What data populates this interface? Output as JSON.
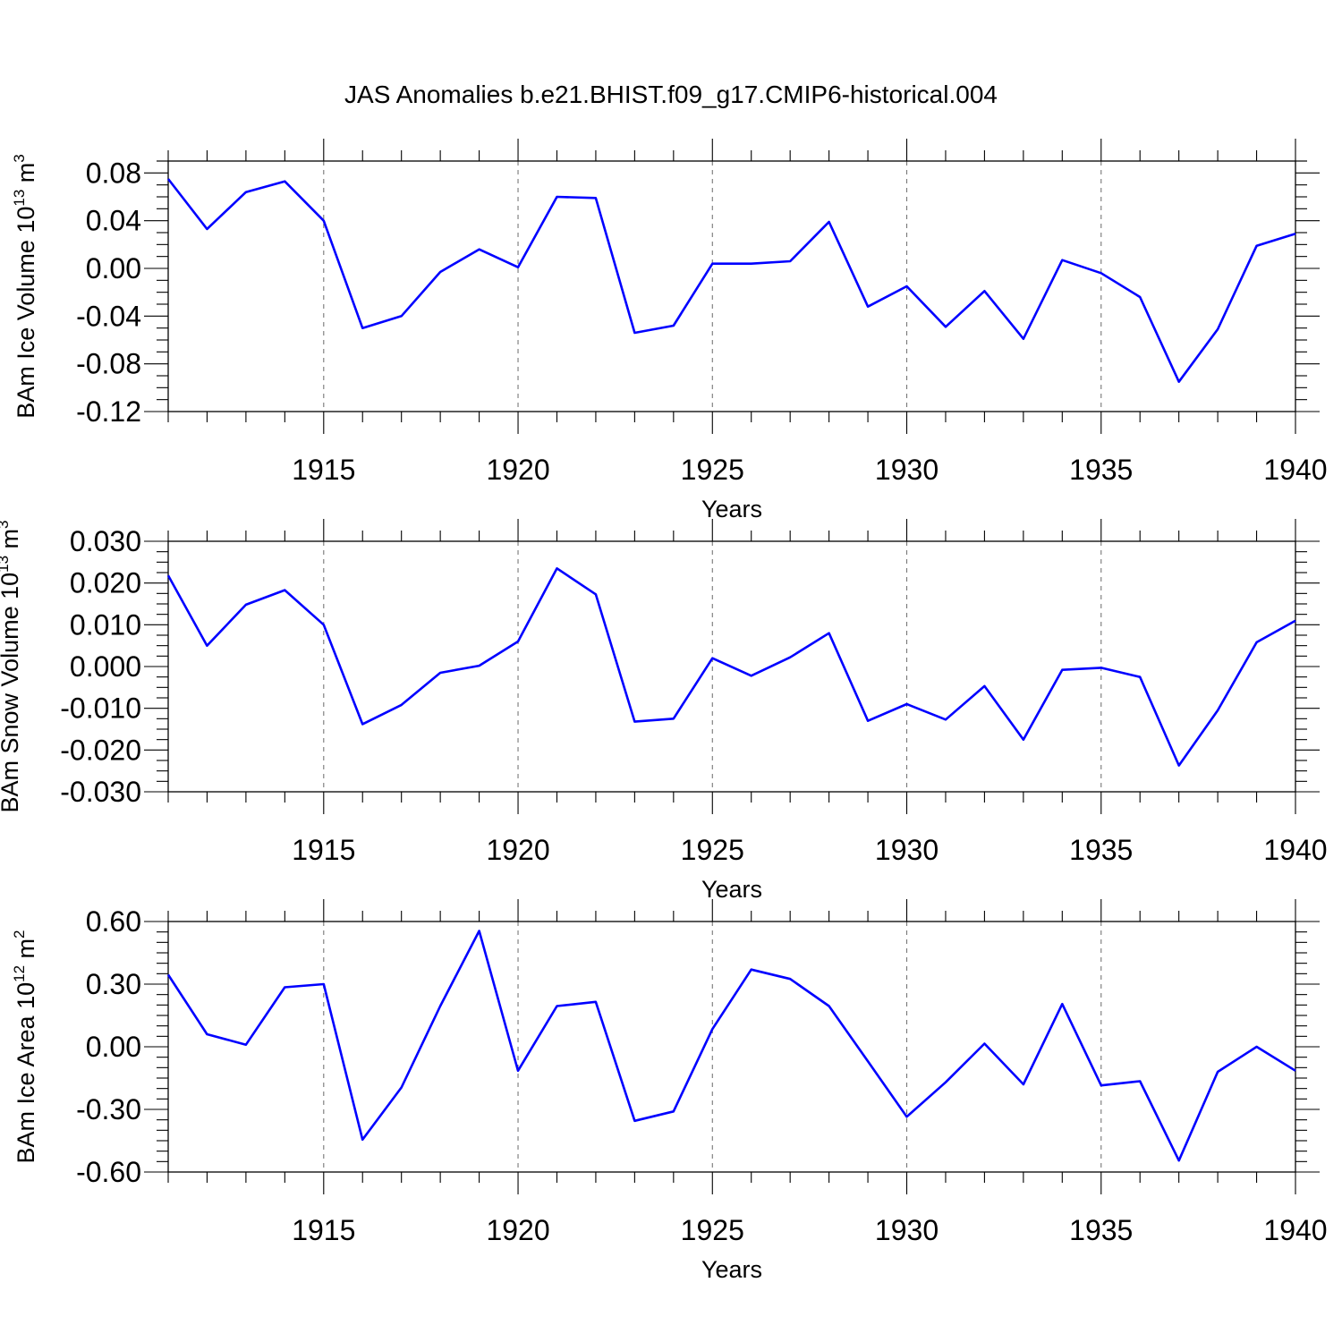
{
  "title": "JAS Anomalies b.e21.BHIST.f09_g17.CMIP6-historical.004",
  "colors": {
    "series": "#0000ff",
    "grid": "#777777",
    "axis": "#000000"
  },
  "chart_data": [
    {
      "type": "line",
      "ylabel": {
        "text": "BAm Ice Volume 10",
        "exp": "13",
        "unit": " m",
        "unit_exp": "3"
      },
      "xlabel": "Years",
      "xlim": [
        1911,
        1940
      ],
      "ylim": [
        -0.12,
        0.09
      ],
      "x_ticks": [
        1915,
        1920,
        1925,
        1930,
        1935,
        1940
      ],
      "x_tick_labels": [
        "1915",
        "1920",
        "1925",
        "1930",
        "1935",
        "1940"
      ],
      "y_ticks": [
        0.08,
        0.04,
        0.0,
        -0.04,
        -0.08,
        -0.12
      ],
      "y_tick_labels": [
        "0.08",
        "0.04",
        "0.00",
        "-0.04",
        "-0.08",
        "-0.12"
      ],
      "grid": "vertical dashed at major x ticks",
      "x": [
        1911,
        1912,
        1913,
        1914,
        1915,
        1916,
        1917,
        1918,
        1919,
        1920,
        1921,
        1922,
        1923,
        1924,
        1925,
        1926,
        1927,
        1928,
        1929,
        1930,
        1931,
        1932,
        1933,
        1934,
        1935,
        1936,
        1937,
        1938,
        1939,
        1940
      ],
      "values": [
        0.075,
        0.033,
        0.064,
        0.073,
        0.04,
        -0.05,
        -0.04,
        -0.003,
        0.016,
        0.001,
        0.06,
        0.059,
        -0.054,
        -0.048,
        0.004,
        0.004,
        0.006,
        0.039,
        -0.032,
        -0.015,
        -0.049,
        -0.019,
        -0.059,
        0.007,
        -0.004,
        -0.024,
        -0.095,
        -0.051,
        0.019,
        0.029
      ]
    },
    {
      "type": "line",
      "ylabel": {
        "text": "BAm Snow Volume 10",
        "exp": "13",
        "unit": " m",
        "unit_exp": "3"
      },
      "xlabel": "Years",
      "xlim": [
        1911,
        1940
      ],
      "ylim": [
        -0.03,
        0.03
      ],
      "x_ticks": [
        1915,
        1920,
        1925,
        1930,
        1935,
        1940
      ],
      "x_tick_labels": [
        "1915",
        "1920",
        "1925",
        "1930",
        "1935",
        "1940"
      ],
      "y_ticks": [
        0.03,
        0.02,
        0.01,
        0.0,
        -0.01,
        -0.02,
        -0.03
      ],
      "y_tick_labels": [
        "0.030",
        "0.020",
        "0.010",
        "0.000",
        "-0.010",
        "-0.020",
        "-0.030"
      ],
      "grid": "vertical dashed at major x ticks",
      "x": [
        1911,
        1912,
        1913,
        1914,
        1915,
        1916,
        1917,
        1918,
        1919,
        1920,
        1921,
        1922,
        1923,
        1924,
        1925,
        1926,
        1927,
        1928,
        1929,
        1930,
        1931,
        1932,
        1933,
        1934,
        1935,
        1936,
        1937,
        1938,
        1939,
        1940
      ],
      "values": [
        0.0218,
        0.005,
        0.0148,
        0.0183,
        0.01,
        -0.0138,
        -0.0092,
        -0.0015,
        0.0002,
        0.006,
        0.0235,
        0.0173,
        -0.0132,
        -0.0125,
        0.002,
        -0.0022,
        0.0022,
        0.008,
        -0.013,
        -0.009,
        -0.0127,
        -0.0047,
        -0.0175,
        -0.0008,
        -0.0003,
        -0.0025,
        -0.0237,
        -0.0105,
        0.0058,
        0.011
      ]
    },
    {
      "type": "line",
      "ylabel": {
        "text": "BAm Ice Area 10",
        "exp": "12",
        "unit": " m",
        "unit_exp": "2"
      },
      "xlabel": "Years",
      "xlim": [
        1911,
        1940
      ],
      "ylim": [
        -0.6,
        0.6
      ],
      "x_ticks": [
        1915,
        1920,
        1925,
        1930,
        1935,
        1940
      ],
      "x_tick_labels": [
        "1915",
        "1920",
        "1925",
        "1930",
        "1935",
        "1940"
      ],
      "y_ticks": [
        0.6,
        0.3,
        0.0,
        -0.3,
        -0.6
      ],
      "y_tick_labels": [
        "0.60",
        "0.30",
        "0.00",
        "-0.30",
        "-0.60"
      ],
      "grid": "vertical dashed at major x ticks",
      "x": [
        1911,
        1912,
        1913,
        1914,
        1915,
        1916,
        1917,
        1918,
        1919,
        1920,
        1921,
        1922,
        1923,
        1924,
        1925,
        1926,
        1927,
        1928,
        1929,
        1930,
        1931,
        1932,
        1933,
        1934,
        1935,
        1936,
        1937,
        1938,
        1939,
        1940
      ],
      "values": [
        0.345,
        0.06,
        0.01,
        0.285,
        0.3,
        -0.445,
        -0.195,
        0.195,
        0.555,
        -0.115,
        0.195,
        0.215,
        -0.355,
        -0.31,
        0.085,
        0.37,
        0.325,
        0.195,
        -0.07,
        -0.335,
        -0.17,
        0.015,
        -0.18,
        0.205,
        -0.185,
        -0.165,
        -0.545,
        -0.12,
        0.0,
        -0.115
      ]
    }
  ]
}
